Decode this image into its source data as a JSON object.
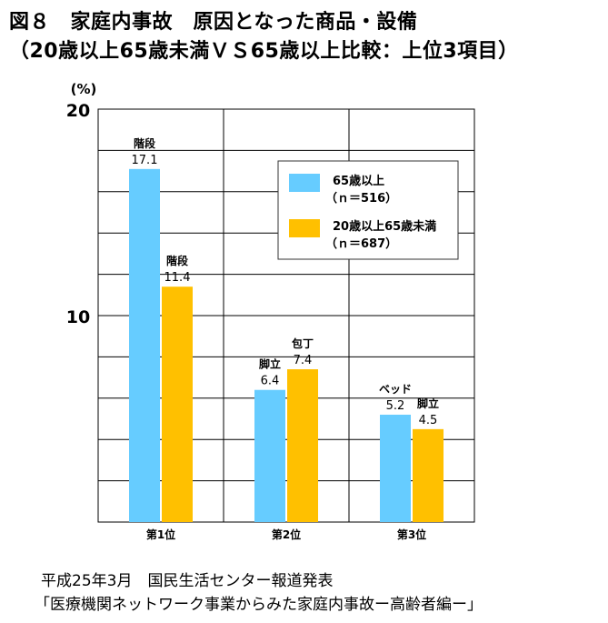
{
  "title_line1": "図８　家庭内事故　原因となった商品・設備",
  "title_line2": "（20歳以上65歳未満ＶＳ65歳以上比較：上位3項目）",
  "source_line1": "平成25年3月　国民生活センター報道発表",
  "source_line2": "「医療機関ネットワーク事業からみた家庭内事故ー高齢者編ー」",
  "colors": {
    "series1": "#66CCFF",
    "series2": "#FFC000",
    "grid": "#000000"
  },
  "chart_data": {
    "type": "bar",
    "yunit": "(%)",
    "ylim": [
      0,
      20
    ],
    "yticks_labeled": [
      10,
      20
    ],
    "grid": true,
    "legend_position": "top-right",
    "categories": [
      "第1位",
      "第2位",
      "第3位"
    ],
    "series": [
      {
        "name": "65歳以上",
        "legend_sub": "（ｎ＝516）",
        "values": [
          17.1,
          6.4,
          5.2
        ],
        "labels": [
          "階段",
          "脚立",
          "ベッド"
        ]
      },
      {
        "name": "20歳以上65歳未満",
        "legend_sub": "（ｎ＝687）",
        "values": [
          11.4,
          7.4,
          4.5
        ],
        "labels": [
          "階段",
          "包丁",
          "脚立"
        ]
      }
    ]
  }
}
